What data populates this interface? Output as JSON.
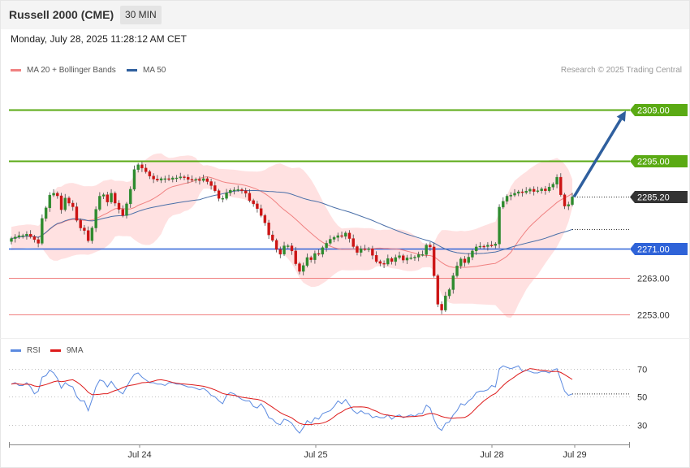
{
  "header": {
    "title": "Russell 2000 (CME)",
    "timeframe": "30 MIN"
  },
  "datetime": "Monday, July 28, 2025 11:28:12 AM CET",
  "legend": {
    "ma20": "MA 20 + Bollinger Bands",
    "ma50": "MA 50",
    "rsi": "RSI",
    "rsi_ma": "9MA"
  },
  "copyright": "Research © 2025 Trading Central",
  "colors": {
    "up": "#2e8b2e",
    "down": "#cc1414",
    "band": "#ffd9d9",
    "ma20": "#f08080",
    "ma50": "#4a6fa8",
    "resistance": "#5aaa14",
    "current": "#333333",
    "pivot": "#2f63d8",
    "support": "#f08080",
    "arrow": "#2f5f9e",
    "rsi": "#5b8ae0",
    "rsi_ma": "#dd1a1a"
  },
  "chart_data": [
    {
      "type": "candlestick",
      "x_labels": [
        "Jul 24",
        "Jul 25",
        "Jul 28",
        "Jul 29"
      ],
      "ylim": [
        2249,
        2318
      ],
      "levels": [
        {
          "value": 2309.0,
          "label": "2309.00",
          "kind": "resistance"
        },
        {
          "value": 2295.0,
          "label": "2295.00",
          "kind": "resistance"
        },
        {
          "value": 2285.2,
          "label": "2285.20",
          "kind": "current"
        },
        {
          "value": 2271.0,
          "label": "2271.00",
          "kind": "pivot"
        },
        {
          "value": 2263.0,
          "label": "2263.00",
          "kind": "support"
        },
        {
          "value": 2253.0,
          "label": "2253.00",
          "kind": "support"
        }
      ],
      "ma50_last": 2276.3,
      "arrow": {
        "from": 2285.2,
        "to": 2309.0
      },
      "close": [
        2273.8,
        2274.2,
        2274.6,
        2274.6,
        2275.0,
        2274.3,
        2273.5,
        2272.5,
        2279.3,
        2282.2,
        2285.7,
        2286.2,
        2285.5,
        2281.7,
        2284.9,
        2283.5,
        2282.5,
        2278.8,
        2276.7,
        2276.0,
        2273.2,
        2276.7,
        2281.8,
        2285.4,
        2285.8,
        2283.8,
        2286.2,
        2283.5,
        2281.8,
        2280.1,
        2283.3,
        2287.3,
        2292.7,
        2294.0,
        2293.1,
        2292.1,
        2290.9,
        2290.1,
        2289.8,
        2290.2,
        2290.2,
        2290.0,
        2290.4,
        2290.4,
        2290.7,
        2290.6,
        2290.0,
        2289.8,
        2290.0,
        2289.7,
        2290.2,
        2289.4,
        2288.3,
        2286.9,
        2284.8,
        2284.8,
        2286.3,
        2287.0,
        2287.1,
        2287.2,
        2286.9,
        2286.2,
        2284.2,
        2283.3,
        2282.0,
        2280.1,
        2278.1,
        2274.8,
        2273.3,
        2270.8,
        2269.5,
        2271.8,
        2271.8,
        2270.4,
        2266.9,
        2264.8,
        2266.4,
        2268.6,
        2268.0,
        2269.7,
        2269.5,
        2271.3,
        2272.5,
        2273.6,
        2274.1,
        2274.6,
        2274.4,
        2275.3,
        2273.8,
        2271.6,
        2270.0,
        2271.0,
        2270.9,
        2271.0,
        2269.2,
        2267.5,
        2267.0,
        2266.8,
        2268.3,
        2267.5,
        2268.6,
        2269.1,
        2267.9,
        2268.5,
        2268.5,
        2268.7,
        2269.4,
        2269.4,
        2272.0,
        2271.5,
        2263.6,
        2255.8,
        2254.2,
        2258.1,
        2259.8,
        2263.6,
        2266.3,
        2268.2,
        2267.2,
        2268.7,
        2270.4,
        2271.5,
        2271.7,
        2271.6,
        2272.0,
        2271.9,
        2272.3,
        2282.4,
        2284.0,
        2285.4,
        2285.7,
        2286.2,
        2286.6,
        2286.4,
        2286.8,
        2287.3,
        2286.7,
        2286.9,
        2287.4,
        2286.9,
        2287.9,
        2288.7,
        2290.6,
        2285.8,
        2282.7,
        2283.1,
        2285.2
      ],
      "rsi": {
        "ylim": [
          20,
          78
        ],
        "ticks": [
          70,
          50,
          30
        ],
        "values": [
          59,
          60,
          58,
          58,
          60,
          57,
          52,
          54,
          64,
          65,
          69,
          67,
          63,
          56,
          60,
          58,
          57,
          50,
          47,
          47,
          40,
          48,
          57,
          62,
          61,
          57,
          61,
          57,
          54,
          52,
          57,
          62,
          66,
          67,
          64,
          62,
          60,
          60,
          59,
          59,
          58,
          60,
          60,
          59,
          59,
          58,
          57,
          57,
          56,
          55,
          56,
          54,
          51,
          50,
          47,
          45,
          51,
          53,
          52,
          50,
          48,
          47,
          47,
          43,
          42,
          45,
          41,
          35,
          34,
          31,
          30,
          34,
          33,
          31,
          27,
          24,
          28,
          33,
          31,
          35,
          34,
          38,
          39,
          40,
          43,
          47,
          45,
          48,
          44,
          40,
          38,
          40,
          38,
          38,
          35,
          36,
          35,
          35,
          37,
          34,
          36,
          37,
          35,
          36,
          37,
          36,
          38,
          38,
          44,
          42,
          34,
          28,
          26,
          31,
          32,
          37,
          40,
          45,
          44,
          47,
          49,
          53,
          54,
          54,
          55,
          58,
          57,
          70,
          72,
          71,
          70,
          71,
          72,
          68,
          69,
          68,
          67,
          67,
          68,
          68,
          67,
          69,
          70,
          62,
          54,
          51,
          52
        ]
      }
    }
  ]
}
